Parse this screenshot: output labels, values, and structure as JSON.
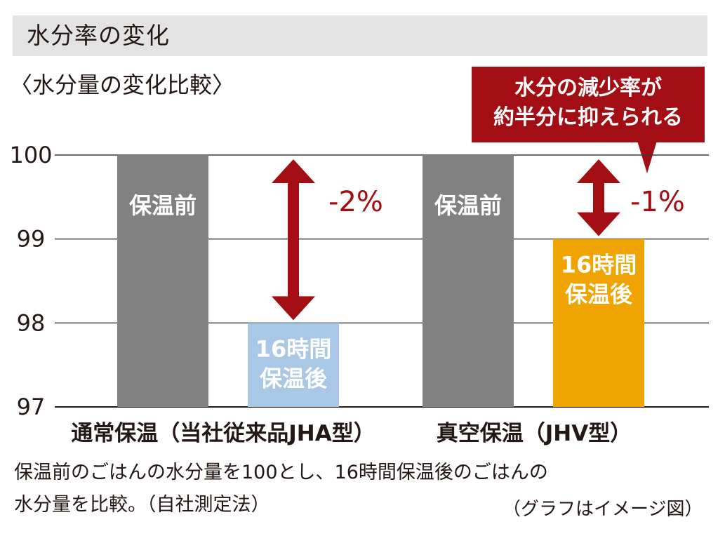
{
  "header": {
    "title": "水分率の変化"
  },
  "subtitle": "〈水分量の変化比較〉",
  "callout": {
    "lines": [
      "水分の減少率が",
      "約半分に抑えられる"
    ]
  },
  "colors": {
    "before": "#818181",
    "after_conventional": "#a9c8e6",
    "after_vacuum": "#f0a400",
    "accent": "#a30d14",
    "header_bg": "#e3e3e3"
  },
  "chart_data": {
    "type": "bar",
    "ylim": [
      97,
      100
    ],
    "yticks": [
      97,
      98,
      99,
      100
    ],
    "grid": true,
    "groups": [
      {
        "label": "通常保温（当社従来品JHA型）",
        "bars": [
          {
            "label": "保温前",
            "value": 100,
            "color": "#818181"
          },
          {
            "label": "16時間\n保温後",
            "value": 98,
            "color": "#a9c8e6"
          }
        ],
        "change_label": "-2%"
      },
      {
        "label": "真空保温（JHV型）",
        "bars": [
          {
            "label": "保温前",
            "value": 100,
            "color": "#818181"
          },
          {
            "label": "16時間\n保温後",
            "value": 99,
            "color": "#f0a400"
          }
        ],
        "change_label": "-1%"
      }
    ]
  },
  "footnotes": [
    "保温前のごはんの水分量を100とし、16時間保温後のごはんの",
    "水分量を比較。（自社測定法）"
  ],
  "image_note": "（グラフはイメージ図）"
}
